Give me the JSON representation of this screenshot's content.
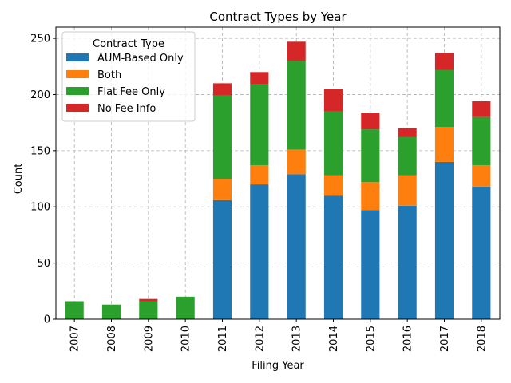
{
  "chart_data": {
    "type": "bar",
    "stacked": true,
    "title": "Contract Types by Year",
    "xlabel": "Filing Year",
    "ylabel": "Count",
    "ylim": [
      0,
      260
    ],
    "yticks": [
      0,
      50,
      100,
      150,
      200,
      250
    ],
    "grid": true,
    "legend_title": "Contract Type",
    "legend_position": "top-left",
    "categories": [
      "2007",
      "2008",
      "2009",
      "2010",
      "2011",
      "2012",
      "2013",
      "2014",
      "2015",
      "2016",
      "2017",
      "2018"
    ],
    "series": [
      {
        "name": "AUM-Based Only",
        "color": "#1f77b4",
        "values": [
          0,
          0,
          0,
          0,
          106,
          120,
          129,
          110,
          97,
          101,
          140,
          118
        ]
      },
      {
        "name": "Both",
        "color": "#ff7f0e",
        "values": [
          0,
          0,
          0,
          0,
          19,
          17,
          22,
          18,
          25,
          27,
          31,
          19
        ]
      },
      {
        "name": "Flat Fee Only",
        "color": "#2ca02c",
        "values": [
          16,
          13,
          16,
          20,
          74,
          72,
          79,
          57,
          47,
          34,
          51,
          43
        ]
      },
      {
        "name": "No Fee Info",
        "color": "#d62728",
        "values": [
          0,
          0,
          2,
          0,
          11,
          11,
          17,
          20,
          15,
          8,
          15,
          14
        ]
      }
    ]
  }
}
